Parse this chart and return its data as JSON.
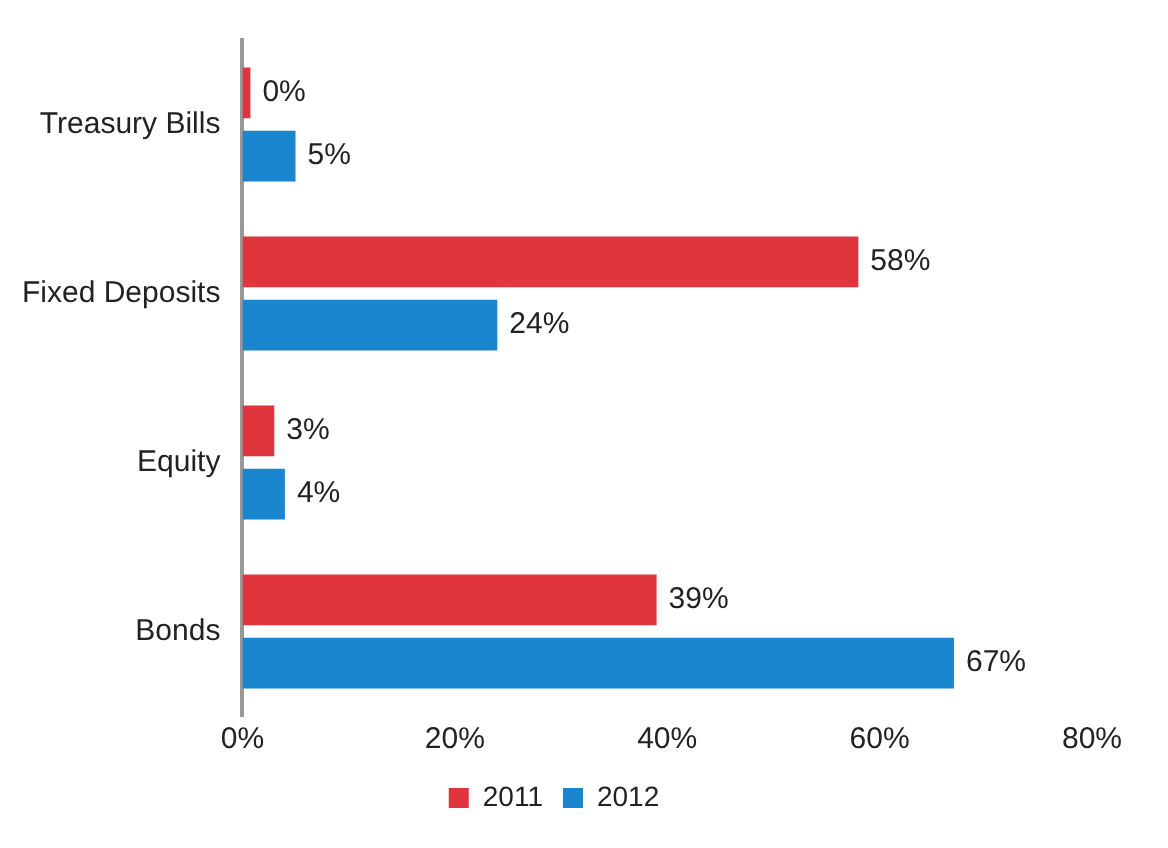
{
  "chart_data": {
    "type": "bar",
    "orientation": "horizontal",
    "categories": [
      "Treasury Bills",
      "Fixed Deposits",
      "Equity",
      "Bonds"
    ],
    "series": [
      {
        "name": "2011",
        "color": "#e0353d",
        "values": [
          0,
          58,
          3,
          39
        ],
        "value_labels": [
          "0%",
          "58%",
          "3%",
          "39%"
        ]
      },
      {
        "name": "2012",
        "color": "#1a86d0",
        "values": [
          5,
          24,
          4,
          67
        ],
        "value_labels": [
          "5%",
          "24%",
          "4%",
          "67%"
        ]
      }
    ],
    "xlim": [
      0,
      80
    ],
    "xticks": [
      {
        "value": 0,
        "label": "0%"
      },
      {
        "value": 20,
        "label": "20%"
      },
      {
        "value": 40,
        "label": "40%"
      },
      {
        "value": 60,
        "label": "60%"
      },
      {
        "value": 80,
        "label": "80%"
      }
    ],
    "grid": false,
    "legend": "bottom"
  }
}
